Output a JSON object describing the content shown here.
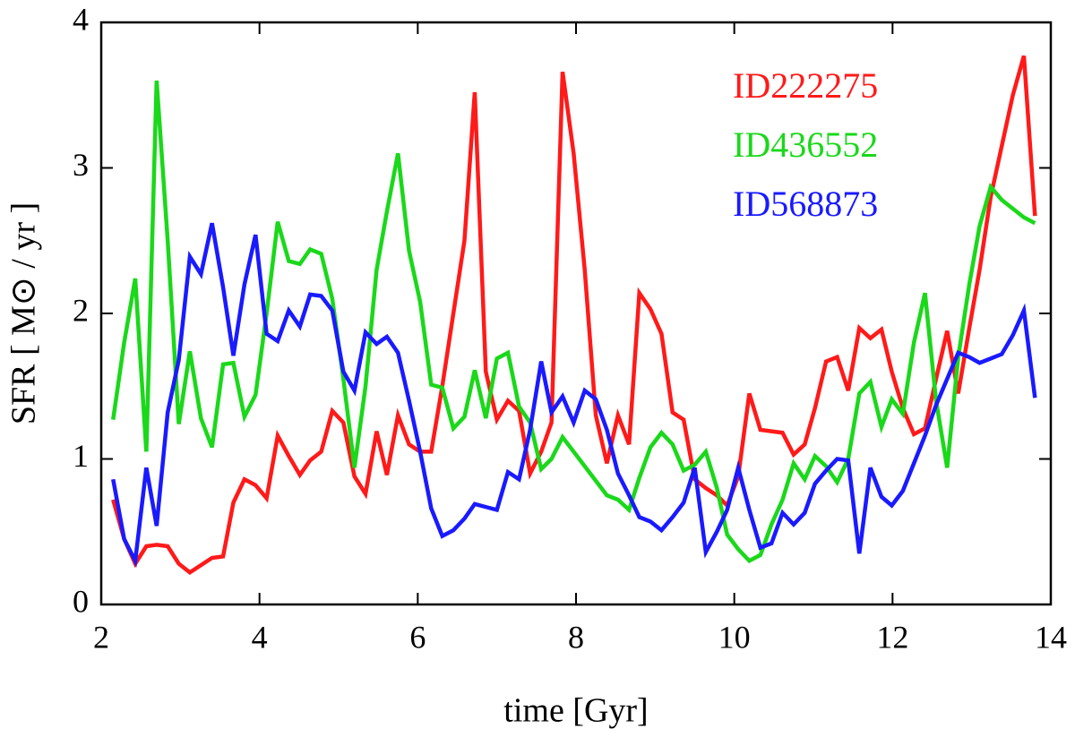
{
  "chart_data": {
    "type": "line",
    "xlabel": "time [Gyr]",
    "ylabel": "SFR [ M⊙ / yr ]",
    "xlim": [
      2,
      14
    ],
    "xticks": [
      2,
      4,
      6,
      8,
      10,
      12,
      14
    ],
    "ylim": [
      0,
      4
    ],
    "yticks": [
      0,
      1,
      2,
      3,
      4
    ],
    "grid": false,
    "legend": "upper right",
    "x": [
      2.15,
      2.29,
      2.43,
      2.57,
      2.7,
      2.84,
      2.98,
      3.12,
      3.26,
      3.4,
      3.54,
      3.67,
      3.81,
      3.95,
      4.09,
      4.23,
      4.37,
      4.51,
      4.64,
      4.78,
      4.92,
      5.06,
      5.2,
      5.34,
      5.48,
      5.61,
      5.75,
      5.89,
      6.03,
      6.17,
      6.31,
      6.45,
      6.59,
      6.72,
      6.86,
      7.0,
      7.14,
      7.28,
      7.42,
      7.56,
      7.69,
      7.83,
      7.97,
      8.11,
      8.25,
      8.39,
      8.53,
      8.67,
      8.8,
      8.94,
      9.08,
      9.22,
      9.36,
      9.5,
      9.64,
      9.78,
      9.91,
      10.05,
      10.19,
      10.33,
      10.47,
      10.61,
      10.75,
      10.89,
      11.02,
      11.16,
      11.3,
      11.44,
      11.58,
      11.72,
      11.86,
      11.99,
      12.13,
      12.27,
      12.41,
      12.55,
      12.69,
      12.83,
      12.97,
      13.1,
      13.24,
      13.38,
      13.52,
      13.66,
      13.8
    ],
    "series": [
      {
        "name": "ID222275",
        "color": "#ff1a1a",
        "values": [
          0.72,
          0.45,
          0.28,
          0.4,
          0.41,
          0.4,
          0.28,
          0.22,
          0.27,
          0.32,
          0.33,
          0.7,
          0.86,
          0.82,
          0.73,
          1.16,
          1.02,
          0.89,
          0.99,
          1.05,
          1.33,
          1.25,
          0.88,
          0.76,
          1.19,
          0.89,
          1.3,
          1.1,
          1.05,
          1.05,
          1.5,
          2.0,
          2.5,
          3.52,
          1.6,
          1.27,
          1.4,
          1.33,
          0.9,
          1.05,
          1.25,
          3.66,
          3.1,
          2.3,
          1.3,
          0.97,
          1.3,
          1.1,
          2.14,
          2.03,
          1.86,
          1.32,
          1.27,
          0.86,
          0.8,
          0.75,
          0.68,
          0.88,
          1.45,
          1.2,
          1.19,
          1.18,
          1.03,
          1.1,
          1.35,
          1.67,
          1.7,
          1.47,
          1.9,
          1.83,
          1.89,
          1.6,
          1.35,
          1.17,
          1.21,
          1.55,
          1.88,
          1.45,
          1.9,
          2.3,
          2.8,
          3.15,
          3.5,
          3.77,
          2.67
        ]
      },
      {
        "name": "ID436552",
        "color": "#1ad81a",
        "values": [
          1.27,
          1.8,
          2.24,
          1.05,
          3.6,
          2.5,
          1.24,
          1.74,
          1.28,
          1.08,
          1.65,
          1.66,
          1.29,
          1.44,
          2.0,
          2.63,
          2.36,
          2.34,
          2.44,
          2.41,
          2.1,
          1.55,
          0.94,
          1.5,
          2.3,
          2.7,
          3.1,
          2.43,
          2.08,
          1.51,
          1.49,
          1.21,
          1.29,
          1.61,
          1.28,
          1.69,
          1.73,
          1.36,
          1.25,
          0.93,
          1.0,
          1.15,
          1.05,
          0.95,
          0.85,
          0.75,
          0.72,
          0.65,
          0.87,
          1.08,
          1.18,
          1.1,
          0.92,
          0.96,
          1.05,
          0.8,
          0.48,
          0.38,
          0.3,
          0.34,
          0.55,
          0.72,
          0.97,
          0.86,
          1.02,
          0.95,
          0.84,
          1.0,
          1.45,
          1.53,
          1.22,
          1.41,
          1.31,
          1.8,
          2.14,
          1.4,
          0.94,
          1.7,
          2.2,
          2.6,
          2.87,
          2.78,
          2.72,
          2.66,
          2.62
        ]
      },
      {
        "name": "ID568873",
        "color": "#1a1aff",
        "values": [
          0.86,
          0.45,
          0.3,
          0.94,
          0.54,
          1.32,
          1.68,
          2.39,
          2.27,
          2.62,
          2.18,
          1.71,
          2.2,
          2.54,
          1.86,
          1.81,
          2.02,
          1.91,
          2.13,
          2.12,
          2.02,
          1.6,
          1.47,
          1.87,
          1.79,
          1.84,
          1.73,
          1.4,
          1.05,
          0.66,
          0.47,
          0.51,
          0.59,
          0.69,
          0.67,
          0.65,
          0.91,
          0.86,
          1.2,
          1.67,
          1.32,
          1.43,
          1.25,
          1.47,
          1.41,
          1.2,
          0.9,
          0.75,
          0.6,
          0.57,
          0.51,
          0.6,
          0.7,
          0.94,
          0.36,
          0.5,
          0.65,
          0.94,
          0.65,
          0.39,
          0.42,
          0.63,
          0.55,
          0.63,
          0.83,
          0.92,
          1.0,
          0.99,
          0.35,
          0.94,
          0.74,
          0.68,
          0.78,
          0.97,
          1.16,
          1.37,
          1.55,
          1.73,
          1.7,
          1.66,
          1.69,
          1.72,
          1.85,
          2.02,
          1.42
        ]
      }
    ]
  }
}
